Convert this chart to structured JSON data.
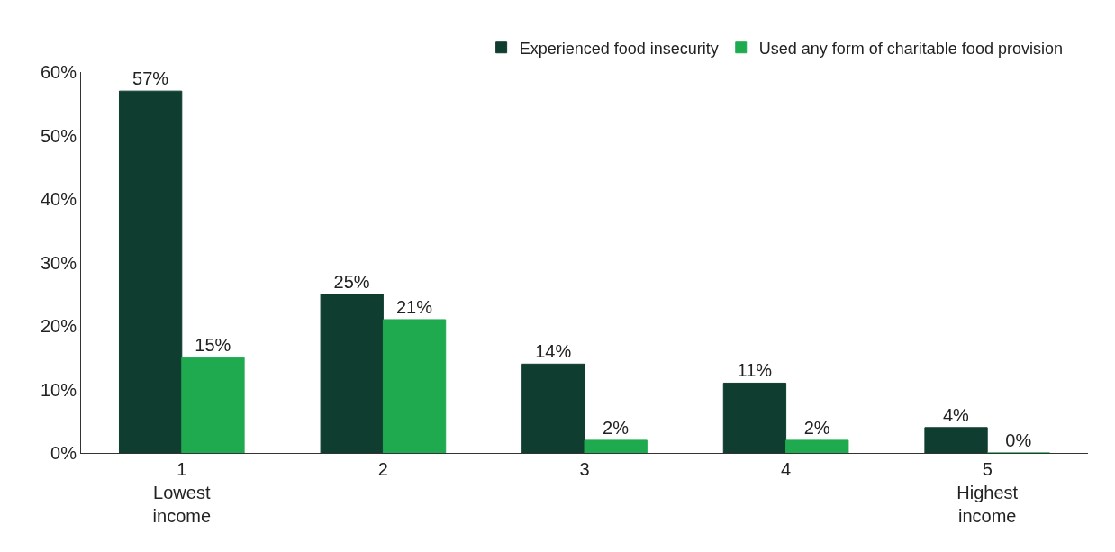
{
  "chart_data": {
    "type": "bar",
    "categories": [
      "1\nLowest\nincome",
      "2",
      "3",
      "4",
      "5\nHighest\nincome"
    ],
    "series": [
      {
        "name": "Experienced food insecurity",
        "color": "#0f3d30",
        "values": [
          57,
          25,
          14,
          11,
          4
        ],
        "value_labels": [
          "57%",
          "25%",
          "14%",
          "11%",
          "4%"
        ]
      },
      {
        "name": "Used any form of charitable food provision",
        "color": "#1faa50",
        "values": [
          15,
          21,
          2,
          2,
          0
        ],
        "value_labels": [
          "15%",
          "21%",
          "2%",
          "2%",
          "0%"
        ]
      }
    ],
    "ylim": [
      0,
      60
    ],
    "yticks": [
      {
        "value": 0,
        "label": "0%"
      },
      {
        "value": 10,
        "label": "10%"
      },
      {
        "value": 20,
        "label": "20%"
      },
      {
        "value": 30,
        "label": "30%"
      },
      {
        "value": 40,
        "label": "40%"
      },
      {
        "value": 50,
        "label": "50%"
      },
      {
        "value": 60,
        "label": "60%"
      }
    ],
    "legend": "top"
  }
}
